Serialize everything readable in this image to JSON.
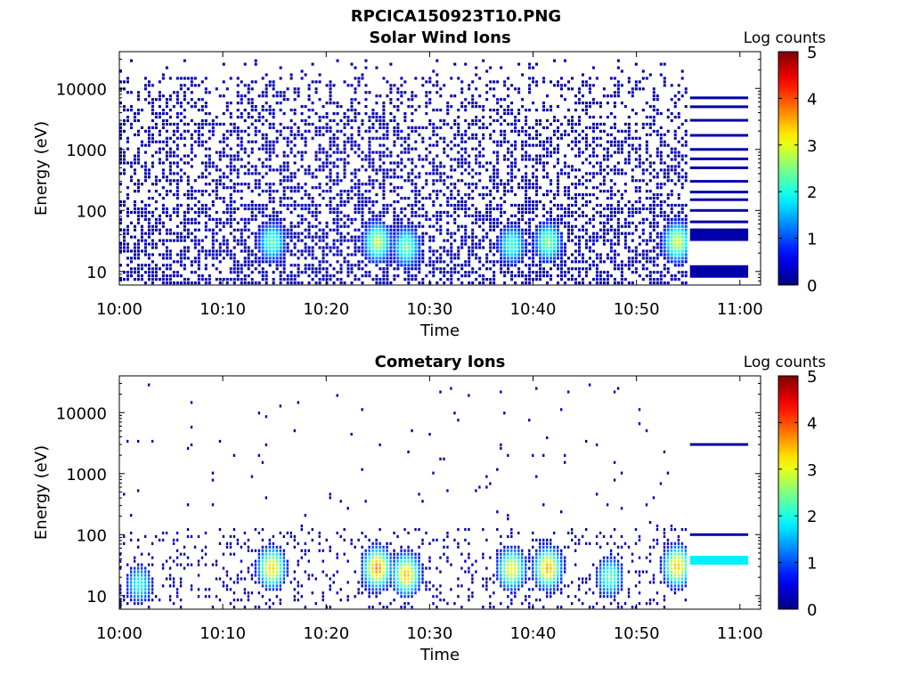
{
  "figure_title": "RPCICA150923T10.PNG",
  "colorbar": {
    "label": "Log counts",
    "range": [
      0,
      5
    ],
    "ticks": [
      "0",
      "1",
      "2",
      "3",
      "4",
      "5"
    ]
  },
  "chart_data": [
    {
      "type": "heatmap",
      "title": "Solar Wind Ions",
      "xlabel": "Time",
      "ylabel": "Energy (eV)",
      "yscale": "log",
      "xlim": [
        "10:00",
        "11:02"
      ],
      "ylim": [
        6,
        40000
      ],
      "x_ticks": [
        "10:00",
        "10:10",
        "10:20",
        "10:30",
        "10:40",
        "10:50",
        "11:00"
      ],
      "y_ticks": [
        "10",
        "100",
        "1000",
        "10000"
      ],
      "colorbar_label": "Log counts",
      "zlim": [
        0,
        5
      ],
      "data_end_time": "10:55",
      "hot_spots": [
        {
          "time_min": 14.8,
          "energy_ev": 30,
          "log_counts": 2.3
        },
        {
          "time_min": 25.0,
          "energy_ev": 30,
          "log_counts": 2.8
        },
        {
          "time_min": 27.8,
          "energy_ev": 25,
          "log_counts": 2.4
        },
        {
          "time_min": 38.0,
          "energy_ev": 27,
          "log_counts": 2.2
        },
        {
          "time_min": 41.5,
          "energy_ev": 30,
          "log_counts": 2.5
        },
        {
          "time_min": 54.0,
          "energy_ev": 30,
          "log_counts": 2.9
        }
      ],
      "background_log_counts": 0.1,
      "trailing_band_energies_ev": [
        10,
        40,
        65,
        100,
        150,
        200,
        300,
        500,
        700,
        1000,
        1700,
        3000,
        5000,
        7000
      ]
    },
    {
      "type": "heatmap",
      "title": "Cometary Ions",
      "xlabel": "Time",
      "ylabel": "Energy (eV)",
      "yscale": "log",
      "xlim": [
        "10:00",
        "11:02"
      ],
      "ylim": [
        6,
        40000
      ],
      "x_ticks": [
        "10:00",
        "10:10",
        "10:20",
        "10:30",
        "10:40",
        "10:50",
        "11:00"
      ],
      "y_ticks": [
        "10",
        "100",
        "1000",
        "10000"
      ],
      "colorbar_label": "Log counts",
      "zlim": [
        0,
        5
      ],
      "data_end_time": "10:55",
      "hot_spots": [
        {
          "time_min": 2.0,
          "energy_ev": 15,
          "log_counts": 2.0
        },
        {
          "time_min": 14.8,
          "energy_ev": 28,
          "log_counts": 3.4
        },
        {
          "time_min": 25.0,
          "energy_ev": 28,
          "log_counts": 3.8
        },
        {
          "time_min": 27.8,
          "energy_ev": 22,
          "log_counts": 3.5
        },
        {
          "time_min": 38.0,
          "energy_ev": 27,
          "log_counts": 3.2
        },
        {
          "time_min": 41.5,
          "energy_ev": 28,
          "log_counts": 3.6
        },
        {
          "time_min": 47.5,
          "energy_ev": 20,
          "log_counts": 2.3
        },
        {
          "time_min": 54.0,
          "energy_ev": 30,
          "log_counts": 3.5
        }
      ],
      "trailing_band_energies_ev": [
        38,
        100,
        3000
      ]
    }
  ]
}
